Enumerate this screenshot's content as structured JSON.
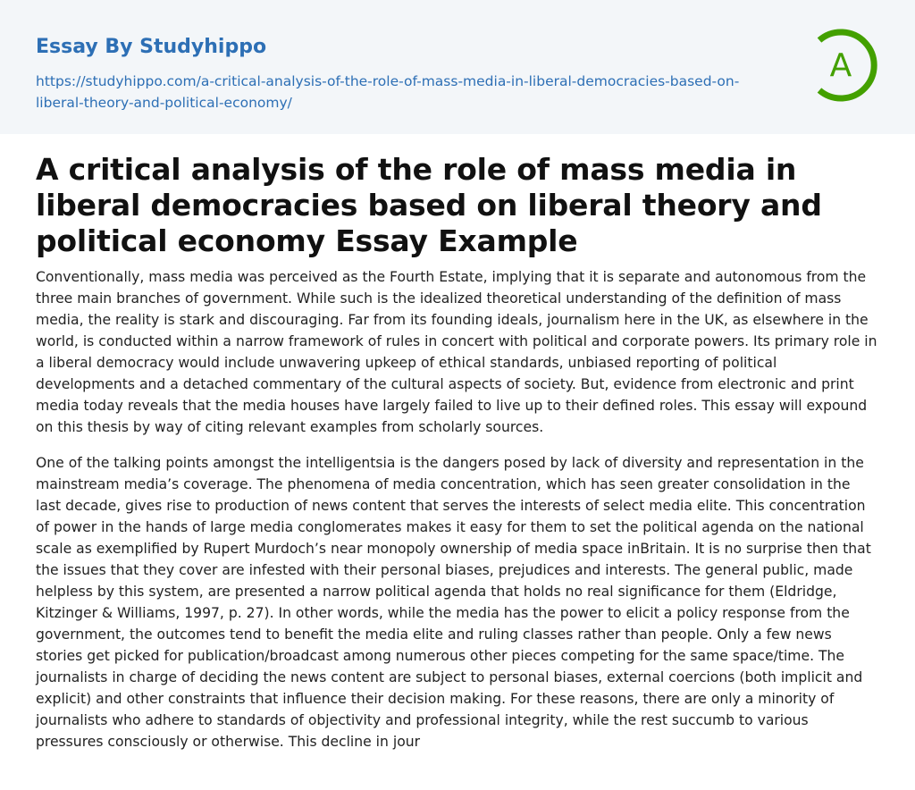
{
  "header": {
    "brand": "Essay By Studyhippo",
    "url": "https://studyhippo.com/a-critical-analysis-of-the-role-of-mass-media-in-liberal-democracies-based-on-liberal-theory-and-political-economy/",
    "logo_letter": "A",
    "logo_color": "#43a000",
    "brand_color": "#2d6fb5"
  },
  "article": {
    "title": "A critical analysis of the role of mass media in liberal democracies based on liberal theory and political economy Essay Example",
    "paragraphs": [
      "Conventionally, mass media was perceived as the Fourth Estate, implying that it is separate and autonomous from the three main branches of government. While such is the idealized theoretical understanding of the definition of mass media, the reality is stark and discouraging. Far from its founding ideals, journalism here in the UK, as elsewhere in the world, is conducted within a narrow framework of rules in concert with political and corporate powers. Its primary role in a liberal democracy would include unwavering upkeep of ethical standards, unbiased reporting of political developments and a detached commentary of the cultural aspects of society. But, evidence from electronic and print media today reveals that the media houses have largely failed to live up to their defined roles. This essay will expound on this thesis by way of citing relevant examples from scholarly sources.",
      "One of the talking points amongst the intelligentsia is the dangers posed by lack of diversity and representation in the mainstream media’s coverage. The phenomena of media concentration, which has seen greater consolidation in the last decade, gives rise to production of news content that serves the interests of select media elite. This concentration of power in the hands of large media conglomerates makes it easy for them to set the political agenda on the national scale as exemplified by Rupert Murdoch’s near monopoly ownership of media space inBritain. It is no surprise then that the issues that they cover are infested with their personal biases, prejudices and interests. The general public, made helpless by this system, are presented a narrow political agenda that holds no real significance for them (Eldridge, Kitzinger & Williams, 1997, p. 27). In other words, while the media has the power to elicit a policy response from the government, the outcomes tend to benefit the media elite and ruling classes rather than people. Only a few news stories get picked for publication/broadcast among numerous other pieces competing for the same space/time. The journalists in charge of deciding the news content are subject to personal biases, external coercions (both implicit and explicit) and other constraints that influence their decision making. For these reasons, there are only a minority of journalists who adhere to standards of objectivity and professional integrity, while the rest succumb to various pressures consciously or otherwise. This decline in jour"
    ]
  }
}
